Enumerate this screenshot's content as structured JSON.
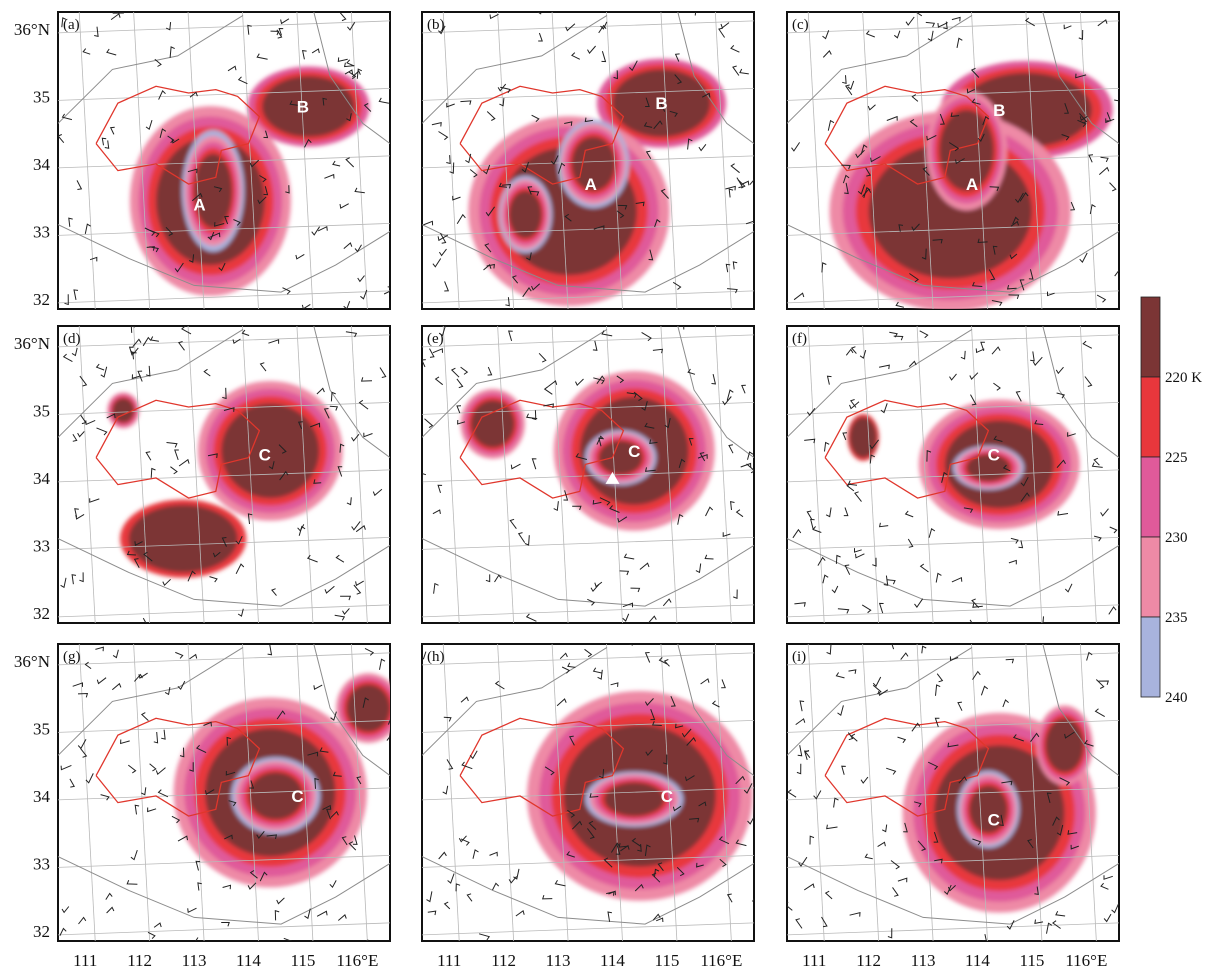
{
  "colorbar": {
    "unit": "K",
    "tick_labels": [
      "220 K",
      "225",
      "230",
      "235",
      "240"
    ],
    "bins": [
      {
        "color": "#7b3535"
      },
      {
        "color": "#e8373c"
      },
      {
        "color": "#e05a9a"
      },
      {
        "color": "#ee8aa6"
      },
      {
        "color": "#a8b3dd"
      }
    ]
  },
  "axes": {
    "lat_labels": [
      {
        "value": 36,
        "text": "36°N"
      },
      {
        "value": 35,
        "text": "35"
      },
      {
        "value": 34,
        "text": "34"
      },
      {
        "value": 33,
        "text": "33"
      },
      {
        "value": 32,
        "text": "32"
      }
    ],
    "lon_labels": [
      {
        "value": 111,
        "text": "111"
      },
      {
        "value": 112,
        "text": "112"
      },
      {
        "value": 113,
        "text": "113"
      },
      {
        "value": 114,
        "text": "114"
      },
      {
        "value": 115,
        "text": "115"
      },
      {
        "value": 116,
        "text": "116°E"
      }
    ]
  },
  "panels": [
    {
      "label": "(a)",
      "systems": [
        {
          "name": "B",
          "lon": 115.0,
          "lat": 34.85,
          "blobs": [
            {
              "lon": 115.1,
              "lat": 34.85,
              "rx": 0.85,
              "ry": 0.45,
              "level": 2
            }
          ]
        },
        {
          "name": "A",
          "lon": 113.1,
          "lat": 33.4,
          "blobs": [
            {
              "lon": 113.3,
              "lat": 33.45,
              "rx": 1.0,
              "ry": 0.95,
              "level": 1
            },
            {
              "lon": 113.35,
              "lat": 33.6,
              "rx": 0.35,
              "ry": 0.55,
              "level": 0
            }
          ]
        }
      ]
    },
    {
      "label": "(b)",
      "systems": [
        {
          "name": "B",
          "lon": 114.9,
          "lat": 34.9,
          "blobs": [
            {
              "lon": 114.9,
              "lat": 34.9,
              "rx": 0.9,
              "ry": 0.5,
              "level": 2
            }
          ]
        },
        {
          "name": "A",
          "lon": 113.6,
          "lat": 33.7,
          "blobs": [
            {
              "lon": 113.2,
              "lat": 33.3,
              "rx": 1.25,
              "ry": 0.95,
              "level": 1
            },
            {
              "lon": 112.4,
              "lat": 33.25,
              "rx": 0.3,
              "ry": 0.35,
              "level": 0
            },
            {
              "lon": 113.65,
              "lat": 34.0,
              "rx": 0.4,
              "ry": 0.4,
              "level": 0
            }
          ]
        }
      ]
    },
    {
      "label": "(c)",
      "systems": [
        {
          "name": "B",
          "lon": 114.4,
          "lat": 34.8,
          "blobs": [
            {
              "lon": 114.9,
              "lat": 34.8,
              "rx": 1.2,
              "ry": 0.55,
              "level": 2
            }
          ]
        },
        {
          "name": "A",
          "lon": 113.9,
          "lat": 33.7,
          "blobs": [
            {
              "lon": 113.5,
              "lat": 33.3,
              "rx": 1.5,
              "ry": 1.0,
              "level": 1
            },
            {
              "lon": 113.8,
              "lat": 34.2,
              "rx": 0.5,
              "ry": 0.6,
              "level": 1
            }
          ]
        }
      ]
    },
    {
      "label": "(d)",
      "systems": [
        {
          "name": "C",
          "lon": 114.3,
          "lat": 34.35,
          "blobs": [
            {
              "lon": 114.4,
              "lat": 34.4,
              "rx": 0.9,
              "ry": 0.7,
              "level": 1
            },
            {
              "lon": 112.8,
              "lat": 33.1,
              "rx": 1.0,
              "ry": 0.5,
              "level": 3
            },
            {
              "lon": 111.7,
              "lat": 35.0,
              "rx": 0.2,
              "ry": 0.18,
              "level": 1
            }
          ]
        }
      ]
    },
    {
      "label": "(e)",
      "systems": [
        {
          "name": "C",
          "lon": 114.4,
          "lat": 34.4,
          "blobs": [
            {
              "lon": 114.4,
              "lat": 34.4,
              "rx": 1.0,
              "ry": 0.8,
              "level": 1
            },
            {
              "lon": 114.15,
              "lat": 34.3,
              "rx": 0.4,
              "ry": 0.25,
              "level": 0
            },
            {
              "lon": 111.8,
              "lat": 34.8,
              "rx": 0.4,
              "ry": 0.35,
              "level": 1
            }
          ]
        }
      ]
    },
    {
      "label": "(f)",
      "systems": [
        {
          "name": "C",
          "lon": 114.3,
          "lat": 34.35,
          "blobs": [
            {
              "lon": 114.4,
              "lat": 34.2,
              "rx": 1.0,
              "ry": 0.65,
              "level": 1
            },
            {
              "lon": 114.2,
              "lat": 34.15,
              "rx": 0.4,
              "ry": 0.2,
              "level": 0
            },
            {
              "lon": 111.9,
              "lat": 34.6,
              "rx": 0.25,
              "ry": 0.3,
              "level": 3
            }
          ]
        }
      ]
    },
    {
      "label": "(g)",
      "systems": [
        {
          "name": "C",
          "lon": 114.9,
          "lat": 34.0,
          "blobs": [
            {
              "lon": 114.4,
              "lat": 34.05,
              "rx": 1.2,
              "ry": 0.95,
              "level": 1
            },
            {
              "lon": 114.5,
              "lat": 34.0,
              "rx": 0.5,
              "ry": 0.35,
              "level": 0
            },
            {
              "lon": 116.2,
              "lat": 35.3,
              "rx": 0.4,
              "ry": 0.35,
              "level": 1
            }
          ]
        }
      ]
    },
    {
      "label": "(h)",
      "systems": [
        {
          "name": "C",
          "lon": 115.0,
          "lat": 34.0,
          "blobs": [
            {
              "lon": 114.5,
              "lat": 34.0,
              "rx": 1.4,
              "ry": 1.05,
              "level": 1
            },
            {
              "lon": 114.4,
              "lat": 33.95,
              "rx": 0.55,
              "ry": 0.25,
              "level": 0
            }
          ]
        }
      ]
    },
    {
      "label": "(i)",
      "systems": [
        {
          "name": "C",
          "lon": 114.3,
          "lat": 33.65,
          "blobs": [
            {
              "lon": 114.4,
              "lat": 33.75,
              "rx": 1.2,
              "ry": 1.0,
              "level": 1
            },
            {
              "lon": 114.2,
              "lat": 33.8,
              "rx": 0.35,
              "ry": 0.35,
              "level": 0
            },
            {
              "lon": 115.6,
              "lat": 34.75,
              "rx": 0.35,
              "ry": 0.4,
              "level": 1
            }
          ]
        }
      ]
    }
  ]
}
